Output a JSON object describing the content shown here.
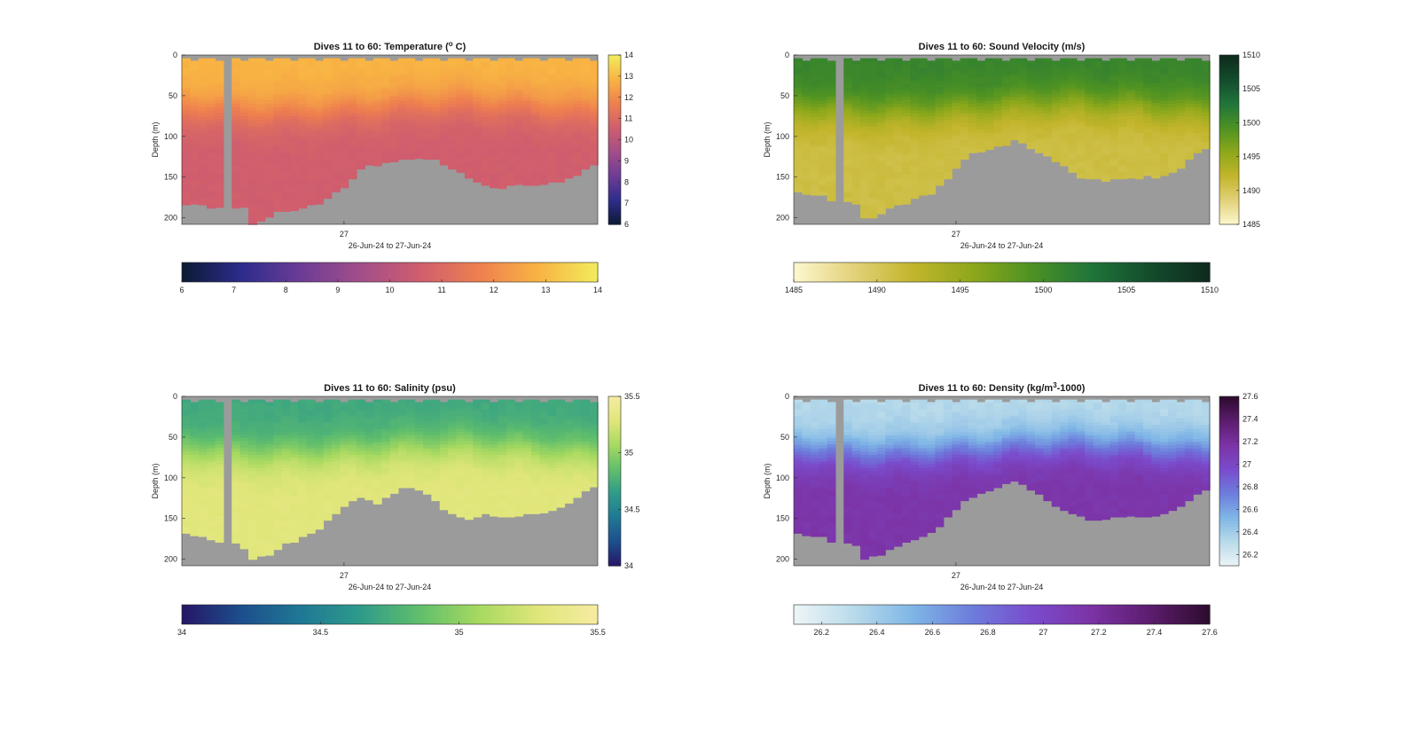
{
  "window": {
    "background": "#ffffff"
  },
  "chart_data": [
    {
      "id": "temperature",
      "type": "heatmap",
      "title_main": "Dives 11 to 60: Temperature (",
      "title_sup": "o",
      "title_tail": " C)",
      "xlabel": "26-Jun-24 to 27-Jun-24",
      "ylabel": "Depth (m)",
      "x_ticks": [
        "27"
      ],
      "y_ticks": [
        0,
        50,
        100,
        150,
        200
      ],
      "ylim": [
        0,
        208
      ],
      "dives": [
        11,
        60
      ],
      "value_range": [
        6,
        14
      ],
      "colorbar_ticks": [
        6,
        7,
        8,
        9,
        10,
        11,
        12,
        13,
        14
      ],
      "colormap": [
        "#0b1a33",
        "#2d2c8c",
        "#6c3c96",
        "#a24e89",
        "#cf5d6e",
        "#ee7f4f",
        "#f8b343",
        "#f1ec5c"
      ],
      "nan_color": "#9b9b9b",
      "surface_value": 12.9,
      "deep_value": 10.6,
      "bottom_depths": [
        182,
        183,
        184,
        185,
        186,
        186,
        185,
        184,
        205,
        204,
        197,
        192,
        190,
        188,
        186,
        184,
        180,
        176,
        168,
        162,
        152,
        140,
        135,
        133,
        130,
        128,
        126,
        128,
        126,
        125,
        128,
        132,
        138,
        144,
        150,
        155,
        160,
        162,
        161,
        160,
        158,
        158,
        158,
        157,
        156,
        153,
        150,
        146,
        140,
        134,
        126
      ]
    },
    {
      "id": "sound_velocity",
      "type": "heatmap",
      "title_main": "Dives 11 to 60: Sound Velocity (m/s)",
      "title_sup": "",
      "title_tail": "",
      "xlabel": "26-Jun-24 to 27-Jun-24",
      "ylabel": "Depth (m)",
      "x_ticks": [
        "27"
      ],
      "y_ticks": [
        0,
        50,
        100,
        150,
        200
      ],
      "ylim": [
        0,
        208
      ],
      "dives": [
        11,
        60
      ],
      "value_range": [
        1485,
        1510
      ],
      "colorbar_ticks": [
        1485,
        1490,
        1495,
        1500,
        1505,
        1510
      ],
      "colormap": [
        "#fdf7cf",
        "#e2d27a",
        "#c3b52c",
        "#8ea81b",
        "#4d9223",
        "#20753a",
        "#134c2c",
        "#0e2a1d"
      ],
      "nan_color": "#9b9b9b",
      "surface_value": 1501,
      "deep_value": 1491,
      "bottom_depths": [
        166,
        168,
        170,
        172,
        176,
        178,
        180,
        182,
        200,
        198,
        194,
        188,
        184,
        180,
        176,
        172,
        168,
        160,
        150,
        138,
        125,
        118,
        116,
        114,
        112,
        108,
        104,
        108,
        112,
        118,
        124,
        130,
        136,
        142,
        148,
        150,
        152,
        154,
        152,
        150,
        150,
        150,
        148,
        148,
        146,
        142,
        136,
        128,
        120,
        114,
        108
      ]
    },
    {
      "id": "salinity",
      "type": "heatmap",
      "title_main": "Dives 11 to 60: Salinity (psu)",
      "title_sup": "",
      "title_tail": "",
      "xlabel": "26-Jun-24 to 27-Jun-24",
      "ylabel": "Depth (m)",
      "x_ticks": [
        "27"
      ],
      "y_ticks": [
        0,
        50,
        100,
        150,
        200
      ],
      "ylim": [
        0,
        208
      ],
      "dives": [
        11,
        60
      ],
      "value_range": [
        34,
        35.5
      ],
      "colorbar_ticks": [
        34,
        34.5,
        35,
        35.5
      ],
      "colormap": [
        "#261667",
        "#1d4e8c",
        "#1f7895",
        "#2e9b8a",
        "#60be6c",
        "#a6d960",
        "#e0e67a",
        "#f6eba2"
      ],
      "nan_color": "#9b9b9b",
      "surface_value": 34.72,
      "deep_value": 35.3,
      "bottom_depths": [
        168,
        170,
        172,
        174,
        176,
        178,
        180,
        184,
        198,
        196,
        192,
        186,
        180,
        176,
        170,
        166,
        160,
        152,
        142,
        132,
        126,
        124,
        126,
        130,
        124,
        118,
        112,
        110,
        114,
        120,
        128,
        136,
        142,
        146,
        148,
        146,
        144,
        145,
        146,
        146,
        145,
        144,
        143,
        142,
        140,
        136,
        130,
        124,
        116,
        108,
        104
      ]
    },
    {
      "id": "density",
      "type": "heatmap",
      "title_main": "Dives 11 to 60: Density (kg/m",
      "title_sup": "3",
      "title_tail": "-1000)",
      "xlabel": "26-Jun-24 to 27-Jun-24",
      "ylabel": "Depth (m)",
      "x_ticks": [
        "27"
      ],
      "y_ticks": [
        0,
        50,
        100,
        150,
        200
      ],
      "ylim": [
        0,
        208
      ],
      "dives": [
        11,
        60
      ],
      "value_range": [
        26.1,
        27.6
      ],
      "colorbar_ticks": [
        26.2,
        26.4,
        26.6,
        26.8,
        27,
        27.2,
        27.4,
        27.6
      ],
      "colormap": [
        "#eef5f7",
        "#b9dbea",
        "#7fb6e6",
        "#6d7ddc",
        "#7a4ccd",
        "#7c33a5",
        "#5c1d6e",
        "#2d0b2d"
      ],
      "nan_color": "#9b9b9b",
      "surface_value": 26.32,
      "deep_value": 27.15,
      "bottom_depths": [
        166,
        168,
        170,
        172,
        176,
        178,
        180,
        182,
        198,
        196,
        192,
        186,
        182,
        178,
        174,
        170,
        166,
        158,
        148,
        138,
        128,
        122,
        118,
        114,
        110,
        106,
        104,
        108,
        114,
        120,
        126,
        132,
        138,
        142,
        146,
        150,
        152,
        150,
        148,
        148,
        146,
        146,
        145,
        144,
        142,
        138,
        132,
        126,
        120,
        112,
        106
      ]
    }
  ]
}
